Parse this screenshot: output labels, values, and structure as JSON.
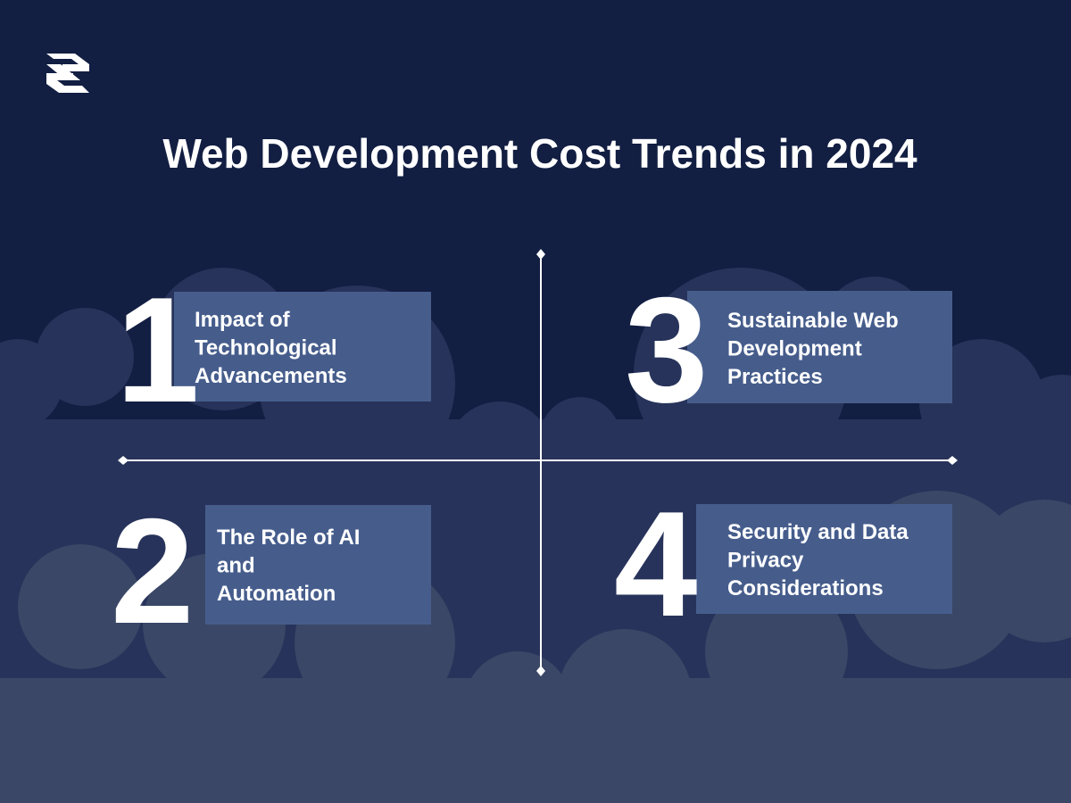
{
  "header": {
    "title": "Web Development Cost Trends in 2024"
  },
  "items": [
    {
      "number": "1",
      "lines": [
        "Impact of",
        "Technological",
        "Advancements"
      ]
    },
    {
      "number": "2",
      "lines": [
        "The Role of AI",
        "and",
        "Automation"
      ]
    },
    {
      "number": "3",
      "lines": [
        "Sustainable Web",
        "Development",
        "Practices"
      ]
    },
    {
      "number": "4",
      "lines": [
        "Security and Data",
        "Privacy",
        "Considerations"
      ]
    }
  ]
}
